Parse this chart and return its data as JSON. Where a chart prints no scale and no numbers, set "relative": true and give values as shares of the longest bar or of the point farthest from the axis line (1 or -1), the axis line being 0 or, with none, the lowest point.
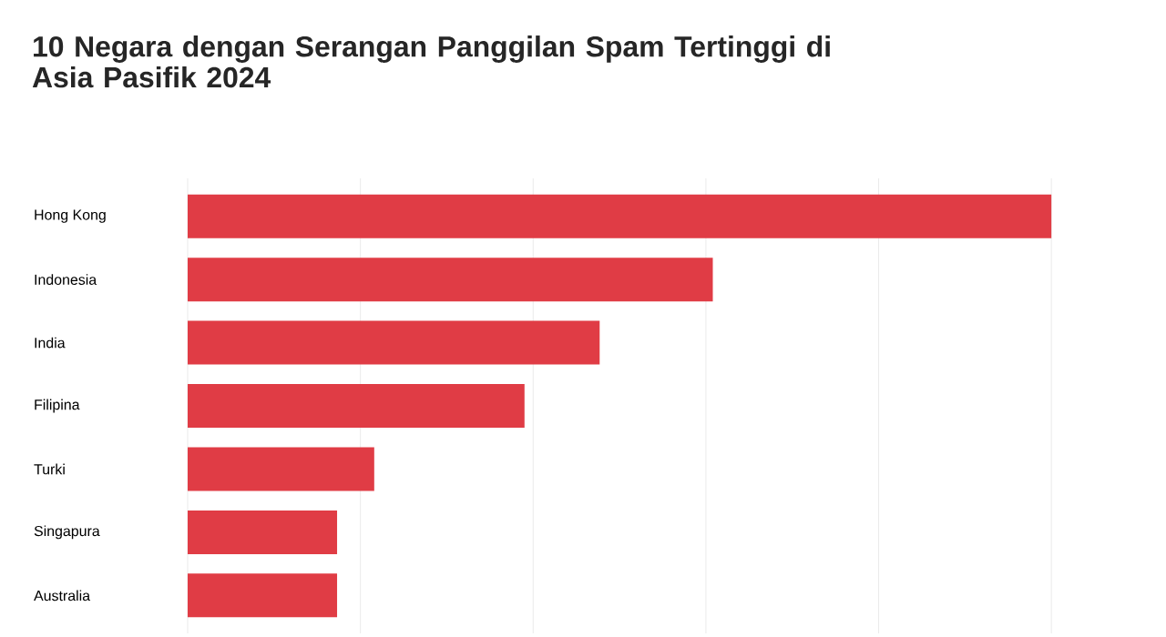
{
  "chart_data": {
    "type": "bar",
    "orientation": "horizontal",
    "relative": true,
    "title": "10 Negara dengan Serangan Panggilan Spam Tertinggi di Asia Pasifik 2024",
    "categories": [
      "Hong Kong",
      "Indonesia",
      "India",
      "Filipina",
      "Turki",
      "Singapura",
      "Australia"
    ],
    "values": [
      1,
      0.608,
      0.477,
      0.39,
      0.216,
      0.173,
      0.173
    ],
    "color": "#e03c45",
    "grid": "x"
  }
}
